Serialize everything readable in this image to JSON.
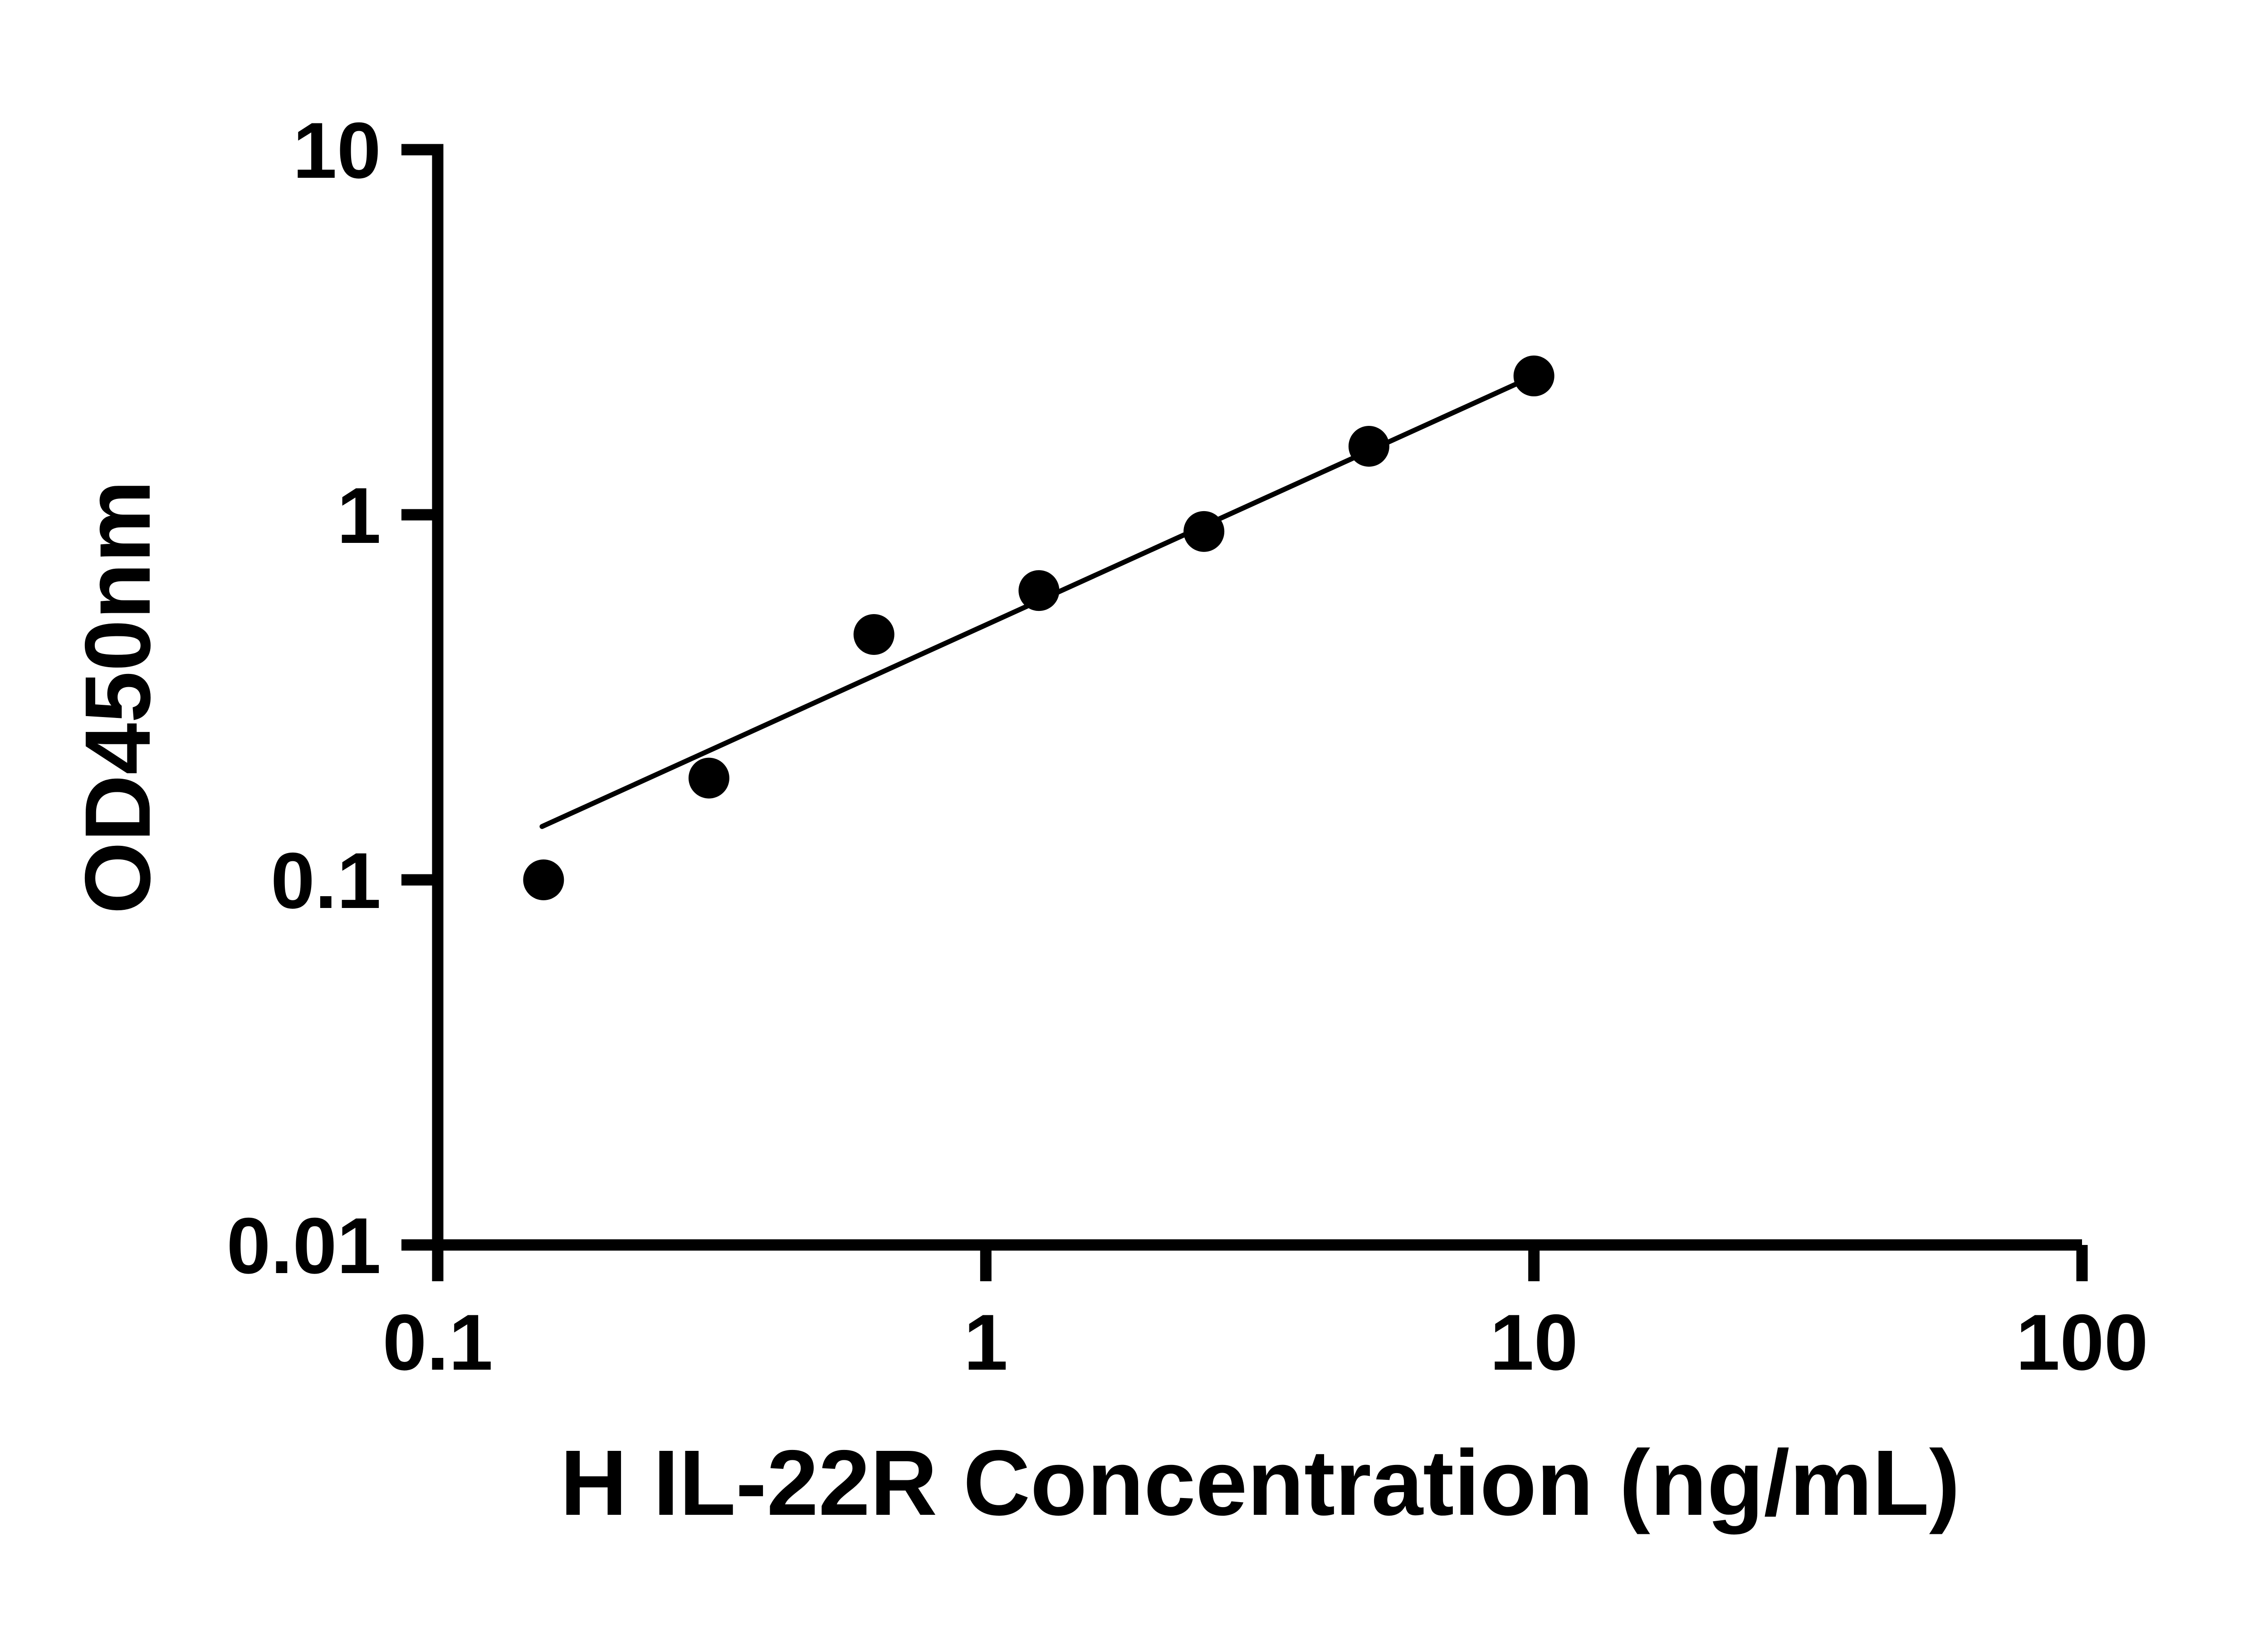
{
  "page": {
    "background": "#ffffff"
  },
  "chart_data": {
    "type": "scatter",
    "title": "",
    "xlabel": "H IL-22R Concentration (ng/mL)",
    "ylabel": "OD450nm",
    "x_scale": "log",
    "y_scale": "log",
    "xlim": [
      0.1,
      100
    ],
    "ylim": [
      0.01,
      10
    ],
    "x_ticks": [
      0.1,
      1,
      10,
      100
    ],
    "x_tick_labels": [
      "0.1",
      "1",
      "10",
      "100"
    ],
    "y_ticks": [
      0.01,
      0.1,
      1,
      10
    ],
    "y_tick_labels": [
      "0.01",
      "0.1",
      "1",
      "10"
    ],
    "grid": false,
    "legend": false,
    "colors": {
      "axis": "#000000",
      "marker": "#000000",
      "line": "#000000",
      "background": "#ffffff"
    },
    "series": [
      {
        "name": "standard-curve-points",
        "type": "scatter",
        "marker": "filled-circle",
        "color": "#000000",
        "x": [
          0.156,
          0.3125,
          0.625,
          1.25,
          2.5,
          5,
          10
        ],
        "y": [
          0.1,
          0.19,
          0.47,
          0.62,
          0.9,
          1.54,
          2.4
        ]
      },
      {
        "name": "fit-line",
        "type": "line",
        "color": "#000000",
        "x": [
          0.155,
          10
        ],
        "y": [
          0.14,
          2.4
        ]
      }
    ]
  }
}
